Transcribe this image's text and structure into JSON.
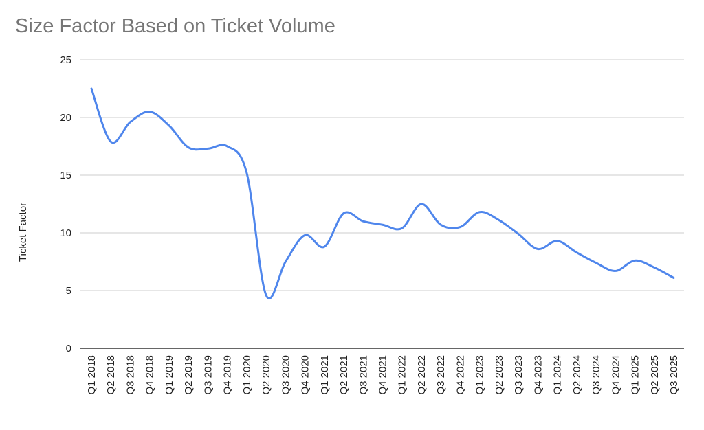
{
  "chart_data": {
    "type": "line",
    "title": "Size Factor Based on Ticket Volume",
    "xlabel": "",
    "ylabel": "Ticket Factor",
    "ylim": [
      0,
      25
    ],
    "yticks": [
      "0",
      "5",
      "10",
      "15",
      "20",
      "25"
    ],
    "grid": true,
    "legend": "none",
    "series_color": "#4f86ec",
    "categories": [
      "Q1 2018",
      "Q2 2018",
      "Q3 2018",
      "Q4 2018",
      "Q1 2019",
      "Q2 2019",
      "Q3 2019",
      "Q4 2019",
      "Q1 2020",
      "Q2 2020",
      "Q3 2020",
      "Q4 2020",
      "Q1 2021",
      "Q2 2021",
      "Q3 2021",
      "Q4 2021",
      "Q1 2022",
      "Q2 2022",
      "Q3 2022",
      "Q4 2022",
      "Q1 2023",
      "Q2 2023",
      "Q3 2023",
      "Q4 2023",
      "Q1 2024",
      "Q2 2024",
      "Q3 2024",
      "Q4 2024",
      "Q1 2025",
      "Q2 2025",
      "Q3 2025"
    ],
    "series": [
      {
        "name": "Ticket Factor",
        "values": [
          22.5,
          17.9,
          19.6,
          20.5,
          19.3,
          17.4,
          17.3,
          17.5,
          15.2,
          4.6,
          7.5,
          9.8,
          8.8,
          11.7,
          11.0,
          10.7,
          10.4,
          12.5,
          10.7,
          10.5,
          11.8,
          11.1,
          9.9,
          8.6,
          9.3,
          8.3,
          7.4,
          6.7,
          7.6,
          7.0,
          6.1
        ]
      }
    ]
  }
}
